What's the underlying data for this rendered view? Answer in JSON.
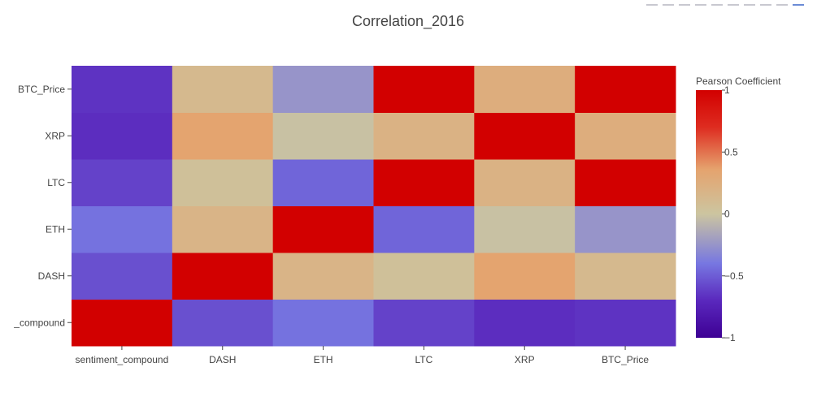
{
  "chart_data": {
    "type": "heatmap",
    "title": "Correlation_2016",
    "x_categories": [
      "sentiment_compound",
      "DASH",
      "ETH",
      "LTC",
      "XRP",
      "BTC_Price"
    ],
    "y_categories": [
      "sentiment_compound",
      "DASH",
      "ETH",
      "LTC",
      "XRP",
      "BTC_Price"
    ],
    "y_tick_labels": [
      "_compound",
      "DASH",
      "ETH",
      "LTC",
      "XRP",
      "BTC_Price"
    ],
    "z": [
      [
        1.0,
        -0.55,
        -0.42,
        -0.6,
        -0.68,
        -0.66
      ],
      [
        -0.55,
        1.0,
        0.18,
        0.05,
        0.35,
        0.13
      ],
      [
        -0.42,
        0.18,
        1.0,
        -0.47,
        -0.02,
        -0.25
      ],
      [
        -0.6,
        0.05,
        -0.47,
        1.0,
        0.2,
        1.0
      ],
      [
        -0.68,
        0.35,
        -0.02,
        0.2,
        1.0,
        0.25
      ],
      [
        -0.66,
        0.13,
        -0.25,
        1.0,
        0.25,
        1.0
      ]
    ],
    "zmin": -1,
    "zmax": 1,
    "colorbar": {
      "title": "Pearson Coefficient",
      "ticks": [
        1,
        0.5,
        0,
        -0.5,
        -1
      ],
      "tick_labels": [
        "1",
        "0.5",
        "0",
        "−0.5",
        "−1"
      ]
    },
    "colorscale": [
      [
        0.0,
        "#3d0094"
      ],
      [
        0.15,
        "#5a28bd"
      ],
      [
        0.3,
        "#7777e1"
      ],
      [
        0.5,
        "#ccc5a0"
      ],
      [
        0.68,
        "#e5a36e"
      ],
      [
        0.85,
        "#de2c20"
      ],
      [
        1.0,
        "#d20000"
      ]
    ]
  }
}
